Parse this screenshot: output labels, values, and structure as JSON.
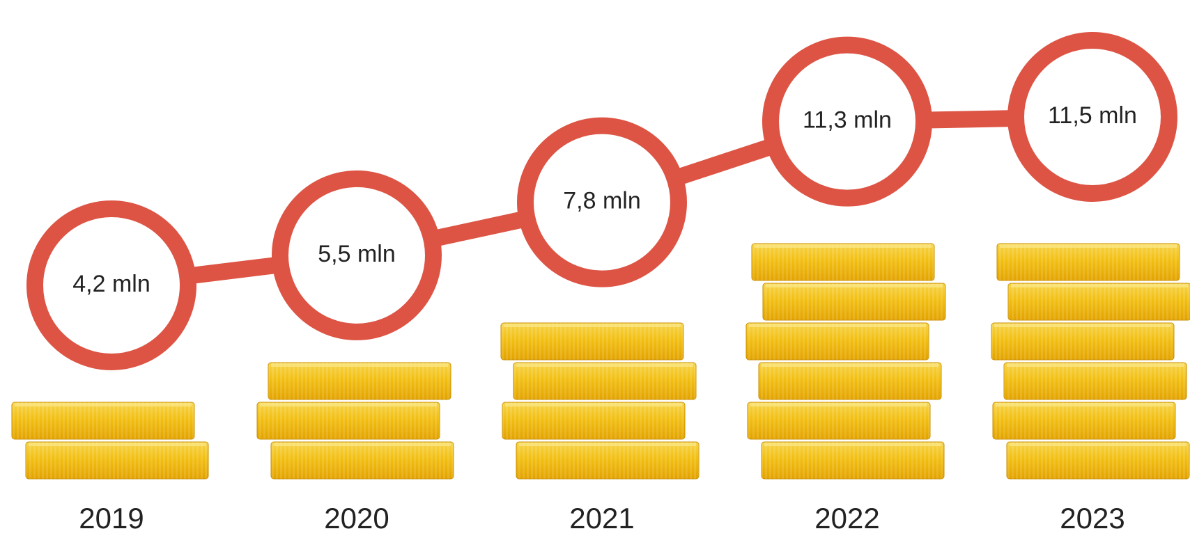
{
  "chart_data": {
    "type": "coin-stack",
    "categories": [
      "2019",
      "2020",
      "2021",
      "2022",
      "2023"
    ],
    "values": [
      4.2,
      5.5,
      7.8,
      11.3,
      11.5
    ],
    "value_labels": [
      "4,2 mln",
      "5,5 mln",
      "7,8 mln",
      "11,3 mln",
      "11,5 mln"
    ],
    "color": "#dd5444"
  }
}
